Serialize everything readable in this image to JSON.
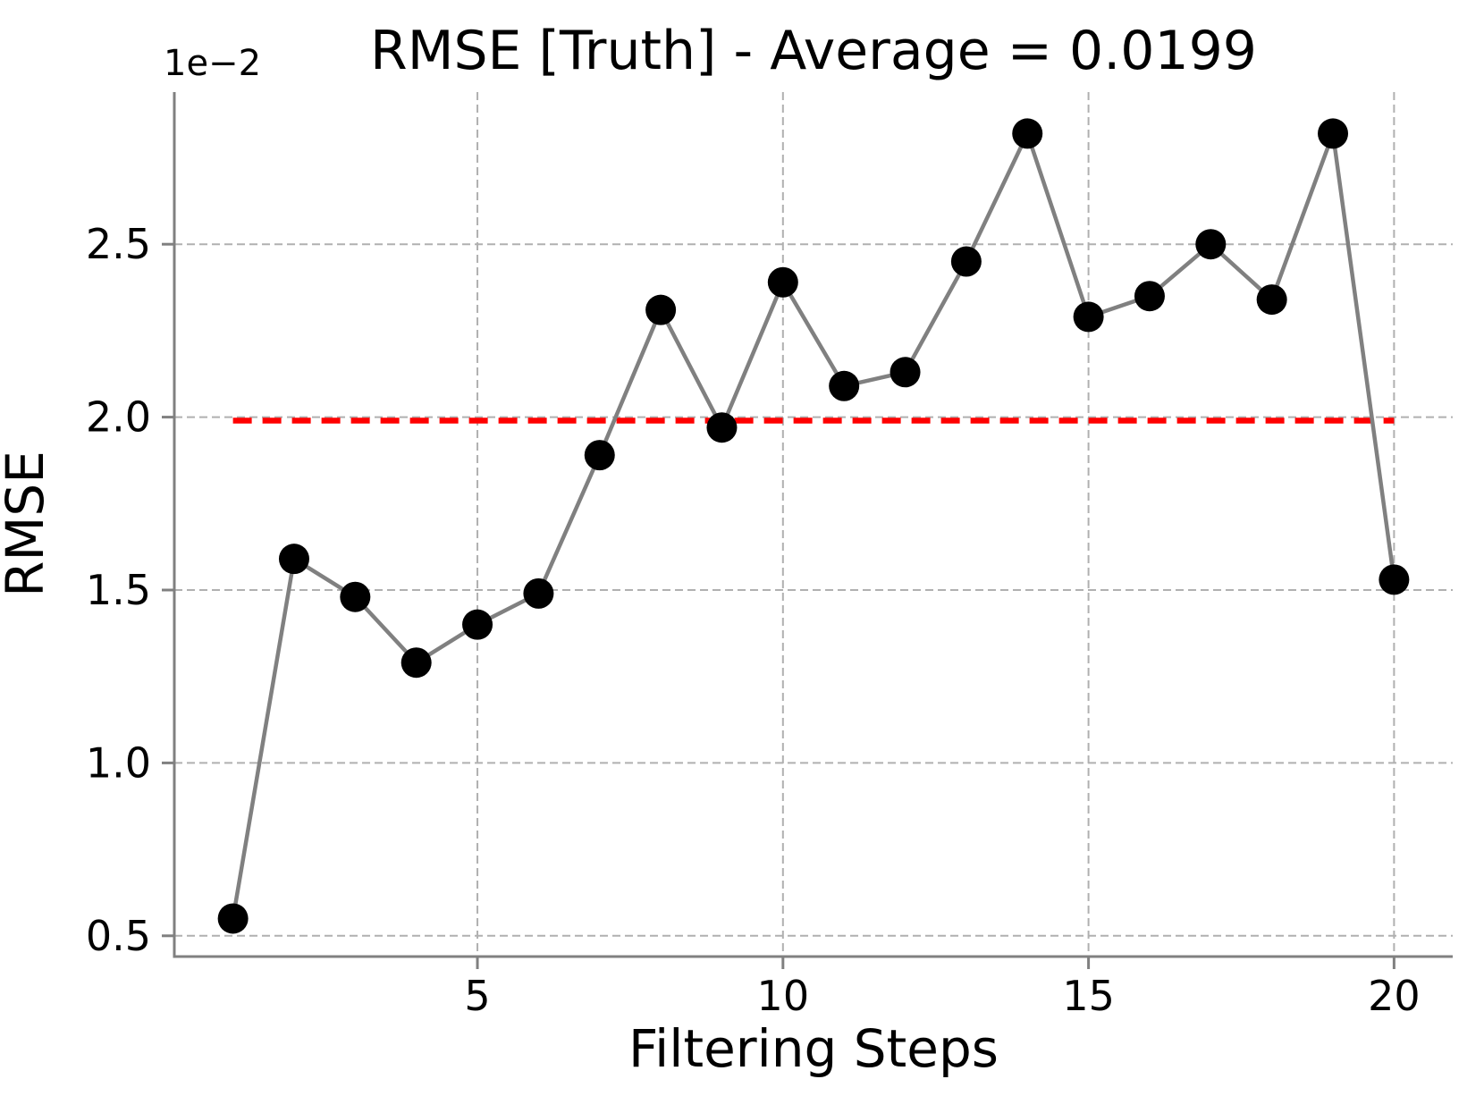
{
  "chart_data": {
    "type": "line",
    "title": "RMSE [Truth] - Average = 0.0199",
    "xlabel": "Filtering Steps",
    "ylabel": "RMSE",
    "y_scale_factor": "1e−2",
    "x": [
      1,
      2,
      3,
      4,
      5,
      6,
      7,
      8,
      9,
      10,
      11,
      12,
      13,
      14,
      15,
      16,
      17,
      18,
      19,
      20
    ],
    "y_times_1e2": [
      0.55,
      1.59,
      1.48,
      1.29,
      1.4,
      1.49,
      1.89,
      2.31,
      1.97,
      2.39,
      2.09,
      2.13,
      2.45,
      2.82,
      2.29,
      2.35,
      2.5,
      2.34,
      2.82,
      1.53
    ],
    "average_value": 0.0199,
    "average_line_y_times_1e2": 1.99,
    "average_line_x_span": [
      1,
      20
    ],
    "xticks": [
      5,
      10,
      15,
      20
    ],
    "yticks_times_1e2": [
      0.5,
      1.0,
      1.5,
      2.0,
      2.5
    ],
    "xlim": [
      0.04,
      20.96
    ],
    "ylim_times_1e2": [
      0.44,
      2.94
    ],
    "grid": true,
    "grid_style": "dashed",
    "legend": false,
    "colors": {
      "data_line": "#808080",
      "marker": "#000000",
      "average_line": "#ff0000",
      "grid": "#b0b0b0",
      "spine": "#808080",
      "tick": "#808080",
      "text": "#000000",
      "background": "#ffffff"
    }
  }
}
